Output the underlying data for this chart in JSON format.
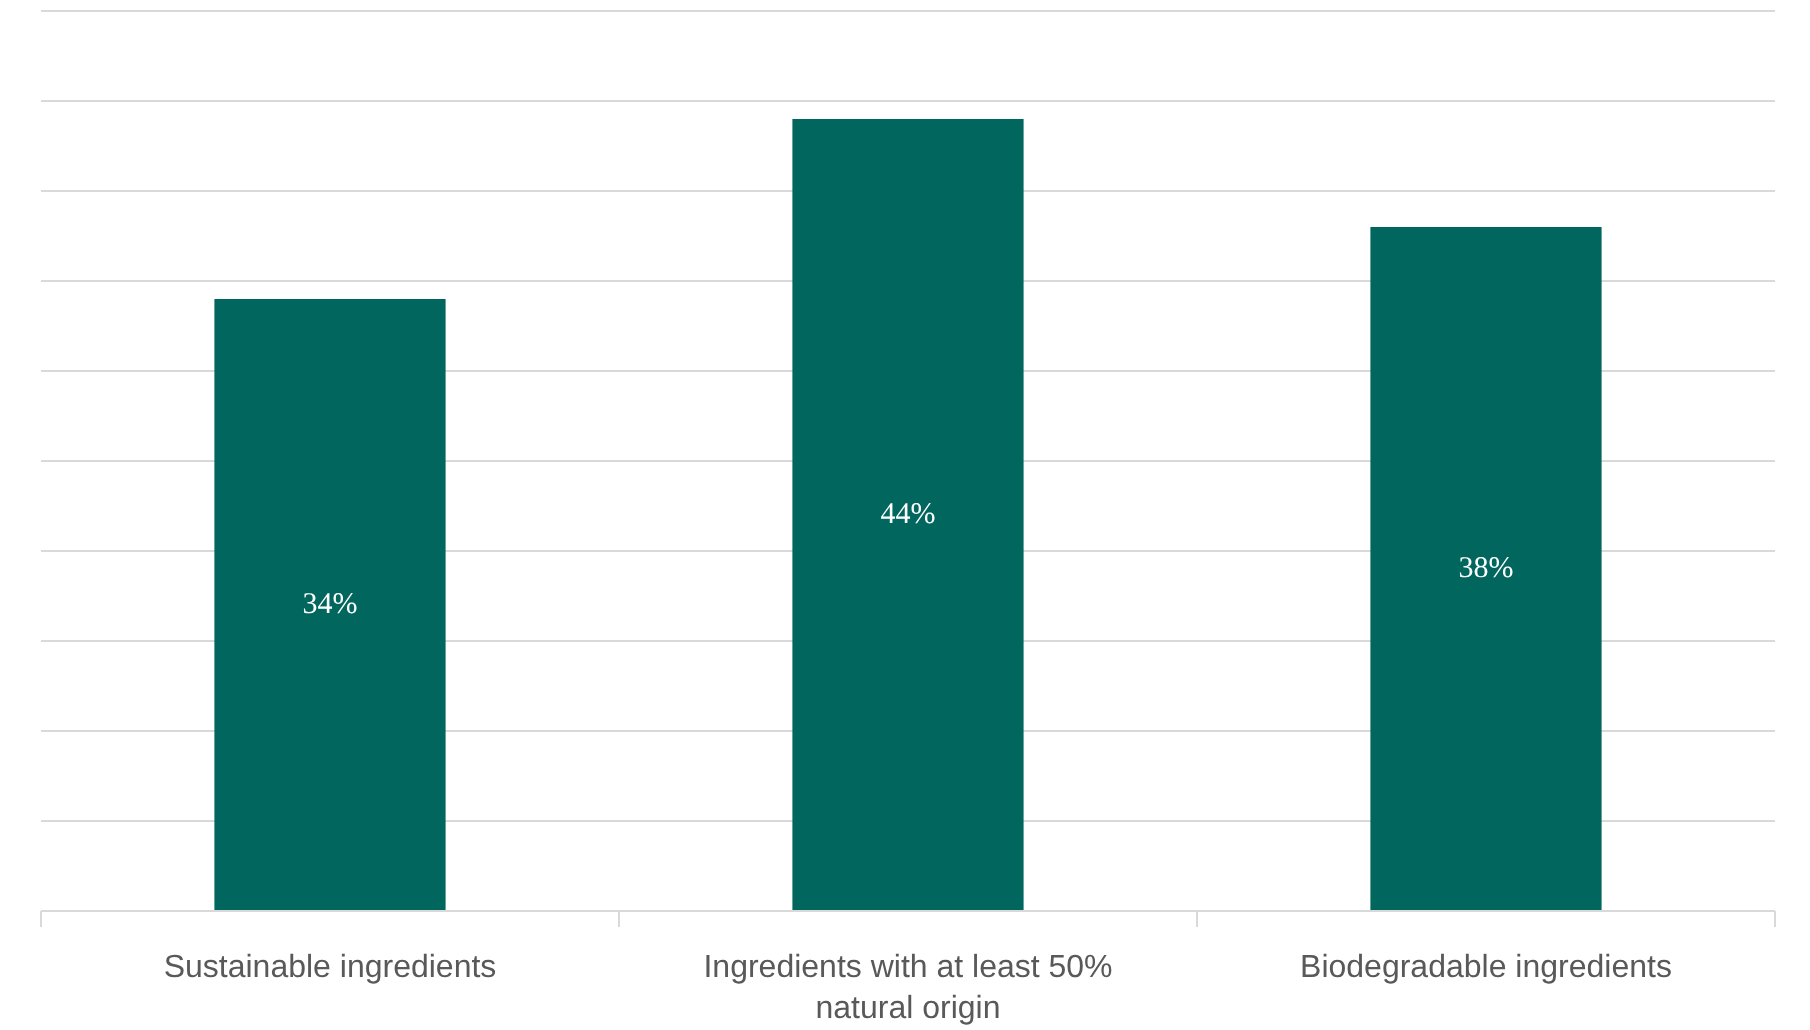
{
  "chart_data": {
    "type": "bar",
    "categories": [
      "Sustainable ingredients",
      "Ingredients with at least 50% natural origin",
      "Biodegradable ingredients"
    ],
    "values": [
      34,
      44,
      38
    ],
    "color": "#00665e",
    "data_labels": true,
    "value_labels": [
      "34%",
      "44%",
      "38%"
    ],
    "ylim": [
      0,
      50
    ],
    "yticks": [
      {
        "value": 0,
        "label": null
      },
      {
        "value": 5,
        "label": null
      },
      {
        "value": 10,
        "label": null
      },
      {
        "value": 15,
        "label": null
      },
      {
        "value": 20,
        "label": null
      },
      {
        "value": 25,
        "label": null
      },
      {
        "value": 30,
        "label": null
      },
      {
        "value": 35,
        "label": null
      },
      {
        "value": 40,
        "label": null
      },
      {
        "value": 45,
        "label": null
      },
      {
        "value": 50,
        "label": null
      }
    ],
    "grid": "y",
    "tick_labels": "x"
  }
}
